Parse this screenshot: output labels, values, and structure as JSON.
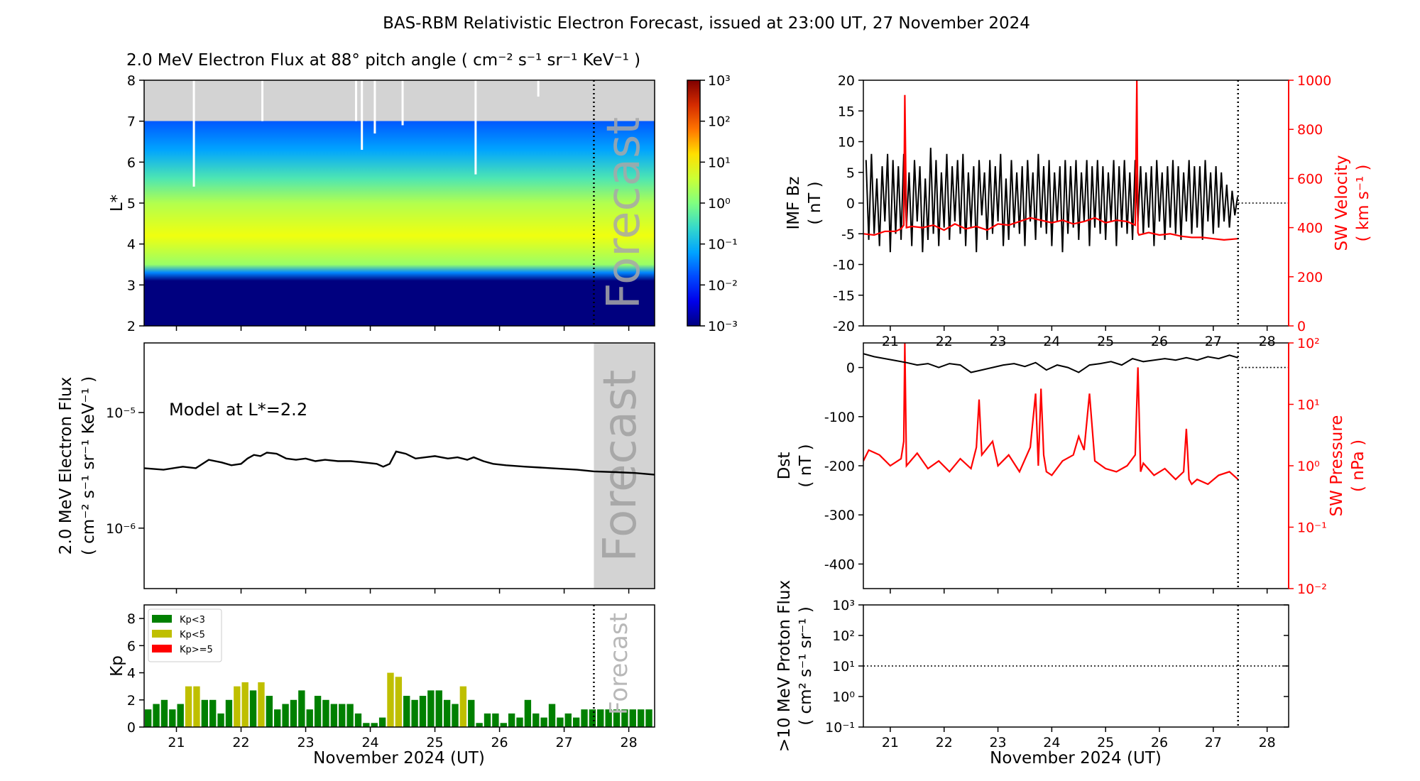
{
  "figure_title": "BAS-RBM Relativistic Electron Forecast, issued at 23:00 UT, 27 November 2024",
  "colors": {
    "forecast_shade": "#d3d3d3",
    "solar_wind": "#ff0000",
    "kp_low": "#008000",
    "kp_mid": "#bfbf00",
    "kp_high": "#ff0000",
    "grey_region": "#d3d3d3"
  },
  "chart_data": [
    {
      "id": "flux_map",
      "type": "heatmap",
      "title": "2.0 MeV Electron Flux at 88° pitch angle ( cm⁻² s⁻¹ sr⁻¹ KeV⁻¹ )",
      "ylabel": "L*",
      "x_range": [
        20.5,
        28.4
      ],
      "ylim": [
        2,
        8
      ],
      "y_ticks": [
        2,
        3,
        4,
        5,
        6,
        7,
        8
      ],
      "x_ticks": [
        21,
        22,
        23,
        24,
        25,
        26,
        27,
        28
      ],
      "forecast_start": 27.46,
      "forecast_label": "Forecast",
      "grey_above_L": 7.0,
      "colorbar": {
        "scale": "log",
        "range": [
          0.001,
          1000
        ],
        "tick_labels": [
          "10⁻³",
          "10⁻²",
          "10⁻¹",
          "10⁰",
          "10¹",
          "10²",
          "10³"
        ]
      },
      "flux_profile": [
        {
          "L": 2.0,
          "log10_flux": -3.0
        },
        {
          "L": 3.1,
          "log10_flux": -3.0
        },
        {
          "L": 3.3,
          "log10_flux": -1.4
        },
        {
          "L": 3.5,
          "log10_flux": 0.2
        },
        {
          "L": 4.2,
          "log10_flux": 0.9
        },
        {
          "L": 5.0,
          "log10_flux": 0.4
        },
        {
          "L": 5.6,
          "log10_flux": -0.4
        },
        {
          "L": 6.3,
          "log10_flux": -1.2
        },
        {
          "L": 7.0,
          "log10_flux": -1.7
        }
      ],
      "data_gaps": [
        {
          "day": 21.27,
          "from_L": 5.4
        },
        {
          "day": 22.33,
          "from_L": 7.0
        },
        {
          "day": 23.78,
          "from_L": 7.0
        },
        {
          "day": 23.87,
          "from_L": 6.3
        },
        {
          "day": 24.07,
          "from_L": 6.7
        },
        {
          "day": 24.5,
          "from_L": 6.9
        },
        {
          "day": 25.63,
          "from_L": 5.7
        },
        {
          "day": 26.6,
          "from_L": 7.6
        }
      ]
    },
    {
      "id": "flux_line",
      "type": "line",
      "ylabel": "2.0 MeV Electron Flux",
      "ylabel_units": "( cm⁻² s⁻¹ sr⁻¹ KeV⁻¹ )",
      "scale": "log",
      "ylim": [
        3e-07,
        4e-05
      ],
      "y_ticks": [
        1e-06,
        1e-05
      ],
      "y_tick_labels": [
        "10⁻⁶",
        "10⁻⁵"
      ],
      "annotation": "Model at L*=2.2",
      "forecast_label": "Forecast",
      "x": [
        20.5,
        20.8,
        21.1,
        21.3,
        21.5,
        21.7,
        21.85,
        22.0,
        22.1,
        22.2,
        22.3,
        22.4,
        22.55,
        22.7,
        22.85,
        23.0,
        23.15,
        23.3,
        23.5,
        23.7,
        23.9,
        24.1,
        24.2,
        24.3,
        24.4,
        24.55,
        24.7,
        24.85,
        25.0,
        25.2,
        25.35,
        25.5,
        25.6,
        25.75,
        25.9,
        26.1,
        26.4,
        26.8,
        27.2,
        27.46,
        27.8,
        28.1,
        28.4
      ],
      "y": [
        3.3e-06,
        3.2e-06,
        3.4e-06,
        3.3e-06,
        3.9e-06,
        3.7e-06,
        3.5e-06,
        3.6e-06,
        4e-06,
        4.3e-06,
        4.2e-06,
        4.5e-06,
        4.4e-06,
        4e-06,
        3.9e-06,
        4e-06,
        3.8e-06,
        3.9e-06,
        3.8e-06,
        3.8e-06,
        3.7e-06,
        3.6e-06,
        3.4e-06,
        3.6e-06,
        4.6e-06,
        4.4e-06,
        4e-06,
        4.1e-06,
        4.2e-06,
        4e-06,
        4.1e-06,
        3.9e-06,
        4.1e-06,
        3.8e-06,
        3.6e-06,
        3.5e-06,
        3.4e-06,
        3.3e-06,
        3.2e-06,
        3.1e-06,
        3.05e-06,
        3e-06,
        2.9e-06
      ]
    },
    {
      "id": "kp_bars",
      "type": "bar",
      "ylabel": "Kp",
      "xlabel": "November 2024 (UT)",
      "ylim": [
        0,
        9
      ],
      "y_ticks": [
        0,
        2,
        4,
        6,
        8
      ],
      "x_tick_labels": [
        "21",
        "22",
        "23",
        "24",
        "25",
        "26",
        "27",
        "28"
      ],
      "forecast_label": "Forecast",
      "legend": [
        {
          "label": "Kp<3",
          "color": "#008000"
        },
        {
          "label": "Kp<5",
          "color": "#bfbf00"
        },
        {
          "label": "Kp>=5",
          "color": "#ff0000"
        }
      ],
      "start_day": 20.5,
      "bin_days": 0.125,
      "values": [
        1.3,
        1.7,
        2.0,
        1.3,
        1.7,
        3.0,
        3.0,
        2.0,
        2.0,
        1.0,
        2.0,
        3.0,
        3.3,
        2.7,
        3.3,
        2.3,
        1.3,
        1.7,
        2.0,
        2.7,
        1.3,
        2.3,
        2.0,
        1.7,
        1.7,
        1.7,
        1.0,
        0.3,
        0.3,
        0.7,
        4.0,
        3.7,
        2.3,
        2.0,
        2.3,
        2.7,
        2.7,
        2.0,
        1.7,
        3.0,
        2.0,
        0.3,
        1.0,
        1.0,
        0.3,
        1.0,
        0.7,
        2.0,
        1.0,
        0.7,
        1.7,
        0.7,
        1.0,
        0.7,
        1.3,
        1.3,
        1.3,
        1.3,
        1.3,
        1.3,
        1.3,
        1.3,
        1.3
      ]
    },
    {
      "id": "imf_bz",
      "type": "line",
      "ylabel": "IMF Bz",
      "ylabel_units": "( nT )",
      "ylim": [
        -20,
        20
      ],
      "y_ticks": [
        -20,
        -15,
        -10,
        -5,
        0,
        5,
        10,
        15,
        20
      ],
      "right_axis": {
        "label": "SW Velocity",
        "units": "( km s⁻¹ )",
        "ylim": [
          0,
          1000
        ],
        "ticks": [
          0,
          200,
          400,
          600,
          800,
          1000
        ]
      },
      "series": [
        {
          "name": "IMF Bz",
          "color": "#000000",
          "x": [
            20.55,
            20.6,
            20.65,
            20.7,
            20.75,
            20.8,
            20.85,
            20.9,
            20.95,
            21.0,
            21.05,
            21.1,
            21.15,
            21.2,
            21.25,
            21.3,
            21.35,
            21.4,
            21.45,
            21.5,
            21.55,
            21.6,
            21.65,
            21.7,
            21.75,
            21.8,
            21.85,
            21.9,
            21.95,
            22.0,
            22.05,
            22.1,
            22.15,
            22.2,
            22.25,
            22.3,
            22.35,
            22.4,
            22.45,
            22.5,
            22.55,
            22.6,
            22.65,
            22.7,
            22.75,
            22.8,
            22.85,
            22.9,
            22.95,
            23.0,
            23.05,
            23.1,
            23.15,
            23.2,
            23.25,
            23.3,
            23.35,
            23.4,
            23.45,
            23.5,
            23.55,
            23.6,
            23.65,
            23.7,
            23.75,
            23.8,
            23.85,
            23.9,
            23.95,
            24.0,
            24.05,
            24.1,
            24.15,
            24.2,
            24.25,
            24.3,
            24.35,
            24.4,
            24.45,
            24.5,
            24.55,
            24.6,
            24.65,
            24.7,
            24.75,
            24.8,
            24.85,
            24.9,
            24.95,
            25.0,
            25.05,
            25.1,
            25.15,
            25.2,
            25.25,
            25.3,
            25.35,
            25.4,
            25.45,
            25.5,
            25.55,
            25.6,
            25.65,
            25.7,
            25.75,
            25.8,
            25.85,
            25.9,
            25.95,
            26.0,
            26.05,
            26.1,
            26.15,
            26.2,
            26.25,
            26.3,
            26.35,
            26.4,
            26.45,
            26.5,
            26.55,
            26.6,
            26.65,
            26.7,
            26.75,
            26.8,
            26.85,
            26.9,
            26.95,
            27.0,
            27.05,
            27.1,
            27.15,
            27.2,
            27.25,
            27.3,
            27.35,
            27.4,
            27.45
          ],
          "y": [
            7,
            -6,
            8,
            -5,
            4,
            -7,
            6,
            -3,
            8,
            -8,
            7,
            -5,
            6,
            -6,
            8,
            -4,
            5,
            -7,
            7,
            -3,
            6,
            -8,
            4,
            -6,
            9,
            -5,
            7,
            -7,
            5,
            -4,
            8,
            -6,
            6,
            -3,
            7,
            -5,
            8,
            -7,
            5,
            -4,
            6,
            -8,
            7,
            -2,
            5,
            -6,
            7,
            -5,
            6,
            -3,
            8,
            -7,
            4,
            -6,
            7,
            -4,
            5,
            -5,
            6,
            -7,
            7,
            -3,
            5,
            -6,
            8,
            -4,
            6,
            -5,
            7,
            -7,
            5,
            -3,
            6,
            -8,
            7,
            -5,
            6,
            -4,
            7,
            -6,
            5,
            -3,
            7,
            -7,
            6,
            -4,
            7,
            -5,
            6,
            -6,
            5,
            -3,
            7,
            -7,
            6,
            -4,
            7,
            -5,
            5,
            -6,
            7,
            -3,
            6,
            -5,
            5,
            -4,
            6,
            -7,
            7,
            -3,
            5,
            -6,
            6,
            -4,
            7,
            -5,
            6,
            -6,
            5,
            -3,
            7,
            -5,
            6,
            -4,
            6,
            -6,
            7,
            -3,
            5,
            -5,
            6,
            -4,
            5,
            -3,
            3,
            -4,
            2,
            -2,
            1
          ]
        },
        {
          "name": "SW Velocity",
          "color": "#ff0000",
          "axis": "right",
          "x": [
            20.5,
            20.7,
            20.9,
            21.1,
            21.2,
            21.25,
            21.27,
            21.3,
            21.4,
            21.6,
            21.8,
            22.0,
            22.2,
            22.4,
            22.6,
            22.8,
            23.0,
            23.2,
            23.4,
            23.6,
            23.8,
            24.0,
            24.2,
            24.4,
            24.6,
            24.8,
            25.0,
            25.2,
            25.4,
            25.55,
            25.58,
            25.6,
            25.62,
            25.8,
            26.0,
            26.2,
            26.4,
            26.6,
            26.8,
            27.0,
            27.2,
            27.46
          ],
          "y": [
            375,
            370,
            385,
            385,
            395,
            410,
            940,
            400,
            405,
            400,
            410,
            390,
            415,
            395,
            405,
            390,
            415,
            410,
            425,
            440,
            430,
            420,
            430,
            415,
            425,
            440,
            420,
            430,
            425,
            410,
            1000,
            380,
            370,
            380,
            370,
            375,
            365,
            360,
            360,
            355,
            350,
            355
          ]
        }
      ]
    },
    {
      "id": "dst",
      "type": "line",
      "ylabel": "Dst",
      "ylabel_units": "( nT )",
      "ylim": [
        -450,
        50
      ],
      "y_ticks": [
        -400,
        -300,
        -200,
        -100,
        0
      ],
      "right_axis": {
        "label": "SW Pressure",
        "units": "( nPa )",
        "scale": "log",
        "ylim": [
          0.01,
          100
        ],
        "tick_labels": [
          "10⁻²",
          "10⁻¹",
          "10⁰",
          "10¹",
          "10²"
        ]
      },
      "series": [
        {
          "name": "Dst",
          "color": "#000000",
          "x": [
            20.5,
            20.7,
            20.9,
            21.1,
            21.3,
            21.5,
            21.7,
            21.9,
            22.1,
            22.3,
            22.5,
            22.7,
            22.9,
            23.1,
            23.3,
            23.5,
            23.7,
            23.9,
            24.1,
            24.3,
            24.5,
            24.7,
            24.9,
            25.1,
            25.3,
            25.5,
            25.7,
            25.9,
            26.1,
            26.3,
            26.5,
            26.7,
            26.9,
            27.1,
            27.3,
            27.46
          ],
          "y": [
            28,
            22,
            18,
            14,
            10,
            5,
            8,
            0,
            8,
            5,
            -10,
            -5,
            0,
            5,
            8,
            2,
            10,
            -5,
            5,
            0,
            -10,
            5,
            8,
            12,
            5,
            18,
            12,
            15,
            18,
            15,
            20,
            15,
            22,
            18,
            25,
            20
          ]
        },
        {
          "name": "SW Pressure",
          "color": "#ff0000",
          "axis": "right",
          "x": [
            20.5,
            20.6,
            20.8,
            21.0,
            21.2,
            21.25,
            21.27,
            21.3,
            21.5,
            21.7,
            21.9,
            22.1,
            22.3,
            22.5,
            22.6,
            22.65,
            22.7,
            22.9,
            23.0,
            23.2,
            23.4,
            23.6,
            23.7,
            23.75,
            23.8,
            23.85,
            23.9,
            24.0,
            24.2,
            24.4,
            24.5,
            24.6,
            24.7,
            24.8,
            25.0,
            25.2,
            25.4,
            25.55,
            25.6,
            25.65,
            25.7,
            25.9,
            26.1,
            26.3,
            26.45,
            26.5,
            26.55,
            26.6,
            26.7,
            26.9,
            27.1,
            27.3,
            27.46
          ],
          "y": [
            1.2,
            1.8,
            1.5,
            1.0,
            1.3,
            2.5,
            100,
            1.0,
            1.6,
            0.9,
            1.2,
            0.8,
            1.3,
            0.9,
            2.0,
            12,
            1.5,
            2.5,
            1.0,
            1.5,
            0.8,
            2.0,
            15,
            1.0,
            18,
            1.5,
            0.8,
            0.7,
            1.2,
            1.5,
            3.0,
            1.8,
            15,
            1.2,
            0.9,
            0.8,
            1.0,
            1.5,
            40,
            0.8,
            1.1,
            0.7,
            0.9,
            0.6,
            0.8,
            4.0,
            0.6,
            0.5,
            0.6,
            0.5,
            0.7,
            0.8,
            0.6
          ]
        }
      ]
    },
    {
      "id": "proton_flux",
      "type": "line",
      "ylabel": ">10 MeV Proton Flux",
      "ylabel_units": "( cm² s⁻¹ sr⁻¹ )",
      "xlabel": "November 2024 (UT)",
      "scale": "log",
      "ylim": [
        0.1,
        1000
      ],
      "y_tick_labels": [
        "10⁻¹",
        "10⁰",
        "10¹",
        "10²",
        "10³"
      ],
      "x_tick_labels": [
        "21",
        "22",
        "23",
        "24",
        "25",
        "26",
        "27",
        "28"
      ],
      "threshold": 10,
      "x": [],
      "y": []
    }
  ]
}
